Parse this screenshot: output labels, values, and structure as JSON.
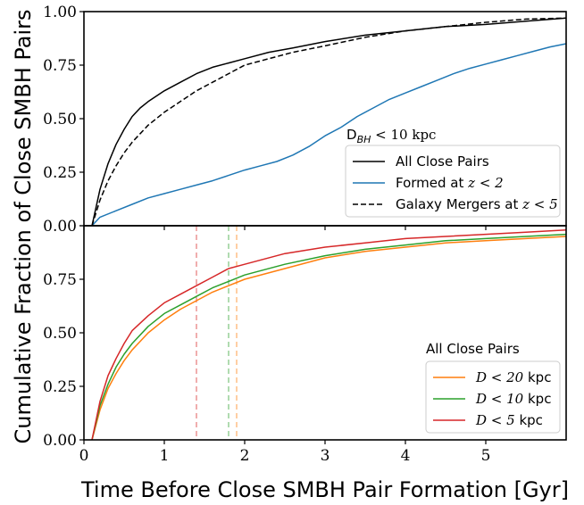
{
  "chart_data": {
    "type": "line",
    "xlabel": "Time Before Close SMBH Pair Formation [Gyr]",
    "ylabel": "Cumulative Fraction of Close SMBH Pairs",
    "xlim": [
      0,
      6
    ],
    "x_ticks": [
      0,
      1,
      2,
      3,
      4,
      5
    ],
    "panels": [
      {
        "id": "top",
        "ylim": [
          0,
          1
        ],
        "y_ticks": [
          "0.00",
          "0.25",
          "0.50",
          "0.75",
          "1.00"
        ],
        "legend": {
          "title": "D$_{BH}$ < 10 kpc",
          "title_main": "D",
          "title_sub": "BH",
          "title_rest": " < 10 kpc",
          "placement": "lower-right"
        },
        "series": [
          {
            "name": "All Close Pairs",
            "color": "#000000",
            "dash": "solid",
            "x": [
              0.1,
              0.2,
              0.3,
              0.4,
              0.5,
              0.6,
              0.7,
              0.8,
              1.0,
              1.2,
              1.4,
              1.6,
              1.8,
              2.0,
              2.3,
              2.6,
              3.0,
              3.5,
              4.0,
              4.5,
              5.0,
              5.5,
              6.0
            ],
            "y": [
              0.0,
              0.17,
              0.29,
              0.38,
              0.45,
              0.51,
              0.55,
              0.58,
              0.63,
              0.67,
              0.71,
              0.74,
              0.76,
              0.78,
              0.81,
              0.83,
              0.86,
              0.89,
              0.91,
              0.93,
              0.94,
              0.955,
              0.97
            ]
          },
          {
            "name": "Formed at z < 2",
            "name_main": "Formed at ",
            "name_math": "z < 2",
            "color": "#1f77b4",
            "dash": "solid",
            "x": [
              0.1,
              0.2,
              0.4,
              0.6,
              0.8,
              1.0,
              1.2,
              1.4,
              1.6,
              1.8,
              2.0,
              2.2,
              2.4,
              2.6,
              2.8,
              3.0,
              3.2,
              3.4,
              3.6,
              3.8,
              4.0,
              4.2,
              4.4,
              4.6,
              4.8,
              5.0,
              5.2,
              5.4,
              5.6,
              5.8,
              6.0
            ],
            "y": [
              0.0,
              0.04,
              0.07,
              0.1,
              0.13,
              0.15,
              0.17,
              0.19,
              0.21,
              0.235,
              0.26,
              0.28,
              0.3,
              0.33,
              0.37,
              0.42,
              0.46,
              0.51,
              0.55,
              0.59,
              0.62,
              0.65,
              0.68,
              0.71,
              0.735,
              0.755,
              0.775,
              0.795,
              0.815,
              0.835,
              0.85
            ]
          },
          {
            "name": "Galaxy Mergers at z < 5",
            "name_main": "Galaxy Mergers at ",
            "name_math": "z < 5",
            "color": "#000000",
            "dash": "dashed",
            "x": [
              0.1,
              0.2,
              0.3,
              0.4,
              0.5,
              0.6,
              0.7,
              0.8,
              1.0,
              1.2,
              1.4,
              1.6,
              1.8,
              2.0,
              2.3,
              2.6,
              3.0,
              3.5,
              4.0,
              4.5,
              5.0,
              5.5,
              6.0
            ],
            "y": [
              0.0,
              0.12,
              0.21,
              0.28,
              0.34,
              0.39,
              0.43,
              0.47,
              0.53,
              0.58,
              0.63,
              0.67,
              0.71,
              0.75,
              0.78,
              0.81,
              0.84,
              0.88,
              0.91,
              0.93,
              0.95,
              0.965,
              0.97
            ]
          }
        ]
      },
      {
        "id": "bottom",
        "ylim": [
          0,
          1
        ],
        "y_ticks": [
          "0.00",
          "0.25",
          "0.50",
          "0.75",
          ""
        ],
        "legend": {
          "title": "All Close Pairs",
          "placement": "lower-right"
        },
        "series": [
          {
            "name": "D < 20 kpc",
            "name_math": "D < 20",
            "name_unit": " kpc",
            "color": "#ff7f0e",
            "dash": "solid",
            "median_x": 1.9,
            "x": [
              0.1,
              0.2,
              0.3,
              0.4,
              0.5,
              0.6,
              0.8,
              1.0,
              1.2,
              1.4,
              1.6,
              1.8,
              2.0,
              2.5,
              3.0,
              3.5,
              4.0,
              4.5,
              5.0,
              5.5,
              6.0
            ],
            "y": [
              0.0,
              0.14,
              0.24,
              0.31,
              0.37,
              0.42,
              0.5,
              0.56,
              0.61,
              0.65,
              0.69,
              0.72,
              0.75,
              0.8,
              0.85,
              0.88,
              0.9,
              0.92,
              0.93,
              0.94,
              0.95
            ]
          },
          {
            "name": "D < 10 kpc",
            "name_math": "D < 10",
            "name_unit": " kpc",
            "color": "#2ca02c",
            "dash": "solid",
            "median_x": 1.8,
            "x": [
              0.1,
              0.2,
              0.3,
              0.4,
              0.5,
              0.6,
              0.8,
              1.0,
              1.2,
              1.4,
              1.6,
              1.8,
              2.0,
              2.5,
              3.0,
              3.5,
              4.0,
              4.5,
              5.0,
              5.5,
              6.0
            ],
            "y": [
              0.0,
              0.16,
              0.26,
              0.34,
              0.4,
              0.45,
              0.53,
              0.59,
              0.63,
              0.67,
              0.71,
              0.74,
              0.77,
              0.82,
              0.86,
              0.89,
              0.91,
              0.93,
              0.94,
              0.95,
              0.96
            ]
          },
          {
            "name": "D < 5 kpc",
            "name_math": "D < 5",
            "name_unit": " kpc",
            "color": "#d62728",
            "dash": "solid",
            "median_x": 1.4,
            "x": [
              0.1,
              0.2,
              0.3,
              0.4,
              0.5,
              0.6,
              0.8,
              1.0,
              1.2,
              1.4,
              1.6,
              1.8,
              2.0,
              2.5,
              3.0,
              3.5,
              4.0,
              4.5,
              5.0,
              5.5,
              6.0
            ],
            "y": [
              0.0,
              0.18,
              0.3,
              0.38,
              0.45,
              0.51,
              0.58,
              0.64,
              0.68,
              0.72,
              0.76,
              0.8,
              0.82,
              0.87,
              0.9,
              0.92,
              0.94,
              0.95,
              0.96,
              0.97,
              0.98
            ]
          }
        ]
      }
    ]
  }
}
